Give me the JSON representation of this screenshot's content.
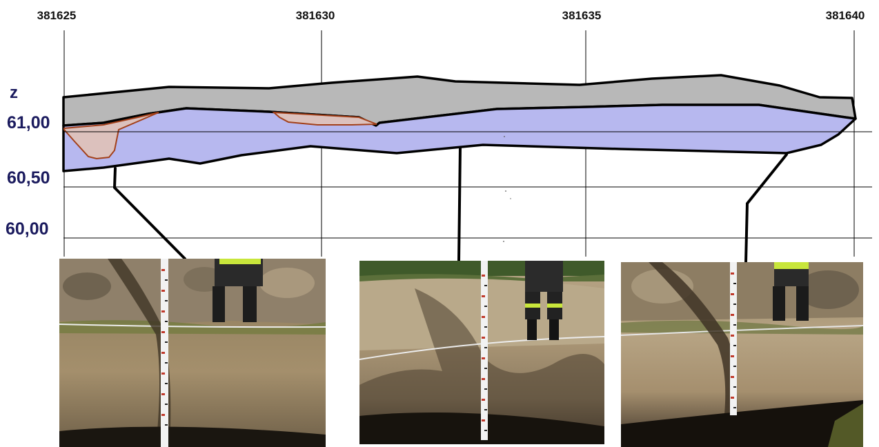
{
  "x_axis": {
    "ticks": [
      "381625",
      "381630",
      "381635",
      "381640"
    ]
  },
  "y_axis": {
    "label": "z",
    "ticks": [
      "61,00",
      "60,50",
      "60,00"
    ]
  },
  "colors": {
    "topsoil_layer": "#b8b8b8",
    "subsoil_layer": "#b7b8ef",
    "feature_fill": "#dcc1bd",
    "feature_outline": "#a3401a",
    "outline": "#000000",
    "grid": "#000000"
  },
  "photos": [
    {
      "name": "trench-photo-1"
    },
    {
      "name": "trench-photo-2"
    },
    {
      "name": "trench-photo-3"
    }
  ]
}
